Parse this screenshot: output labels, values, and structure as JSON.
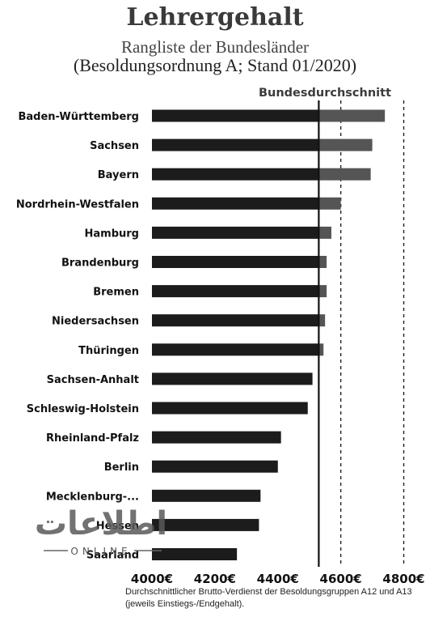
{
  "chart_data": {
    "type": "bar",
    "orientation": "horizontal",
    "title": "Lehrergehalt",
    "subtitle": "Rangliste der Bundesländer",
    "subtitle2": "(Besoldungsordnung A; Stand 01/2020)",
    "reference_label": "Bundesdurchschnitt",
    "reference_value": 4530,
    "footnote": "Durchschnittlicher Brutto-Verdienst der Besoldungsgruppen A12 und A13 (jeweils Einstiegs-/Endgehalt).",
    "xlim": [
      4000,
      4850
    ],
    "xticks": [
      4000,
      4200,
      4400,
      4600,
      4800
    ],
    "xtick_labels": [
      "4000€",
      "4200€",
      "4400€",
      "4600€",
      "4800€"
    ],
    "grid": "dashed vertical lines at 4600 and 4800",
    "categories": [
      "Baden-Württemberg",
      "Sachsen",
      "Bayern",
      "Nordrhein-Westfalen",
      "Hamburg",
      "Brandenburg",
      "Bremen",
      "Niedersachsen",
      "Thüringen",
      "Sachsen-Anhalt",
      "Schleswig-Holstein",
      "Rheinland-Pfalz",
      "Berlin",
      "Mecklenburg-...",
      "Hessen",
      "Saarland"
    ],
    "values": [
      4740,
      4700,
      4695,
      4600,
      4570,
      4555,
      4555,
      4550,
      4545,
      4510,
      4495,
      4410,
      4400,
      4345,
      4340,
      4270
    ],
    "colors": {
      "bar": "#1c1c1c",
      "above_average": "#555555",
      "reference_line": "#111111",
      "grid": "#222222"
    }
  },
  "watermark": {
    "arabic": "اطلاعات",
    "latin": "ONLINE"
  }
}
